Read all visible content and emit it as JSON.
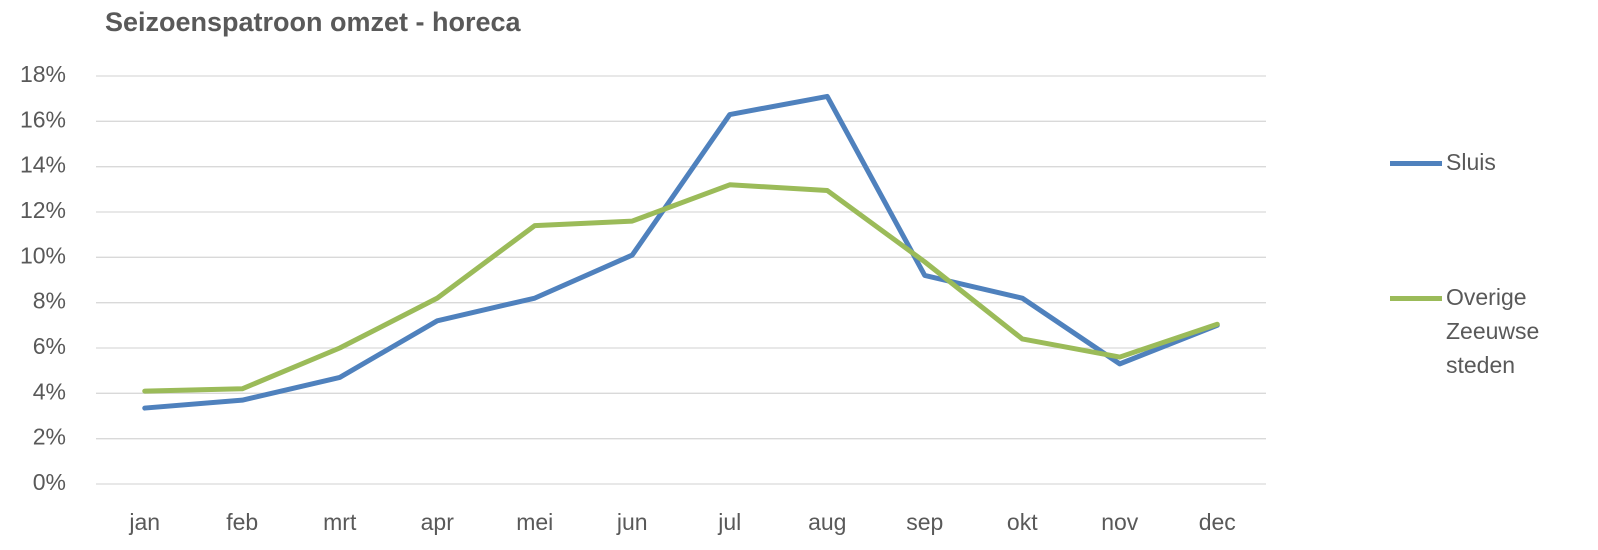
{
  "chart_data": {
    "type": "line",
    "title": "Seizoenspatroon omzet - horeca",
    "categories": [
      "jan",
      "feb",
      "mrt",
      "apr",
      "mei",
      "jun",
      "jul",
      "aug",
      "sep",
      "okt",
      "nov",
      "dec"
    ],
    "series": [
      {
        "name": "Sluis",
        "color": "#4f81bd",
        "values": [
          3.35,
          3.7,
          4.7,
          7.2,
          8.2,
          10.1,
          16.3,
          17.1,
          9.2,
          8.2,
          5.3,
          7.0
        ]
      },
      {
        "name": "Overige Zeeuwse steden",
        "color": "#9bbb59",
        "values": [
          4.1,
          4.2,
          6.0,
          8.2,
          11.4,
          11.6,
          13.2,
          12.95,
          9.8,
          6.4,
          5.6,
          7.05
        ]
      }
    ],
    "ylim": [
      0,
      18
    ],
    "yticks": [
      {
        "value": 0,
        "label": "0%"
      },
      {
        "value": 2,
        "label": "2%"
      },
      {
        "value": 4,
        "label": "4%"
      },
      {
        "value": 6,
        "label": "6%"
      },
      {
        "value": 8,
        "label": "8%"
      },
      {
        "value": 10,
        "label": "10%"
      },
      {
        "value": 12,
        "label": "12%"
      },
      {
        "value": 14,
        "label": "14%"
      },
      {
        "value": 16,
        "label": "16%"
      },
      {
        "value": 18,
        "label": "18%"
      }
    ],
    "grid": true,
    "legend": "right"
  }
}
